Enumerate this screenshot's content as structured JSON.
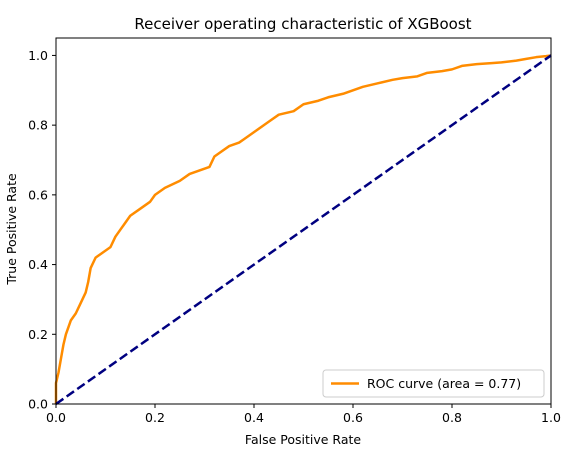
{
  "chart_data": {
    "type": "line",
    "title": "Receiver operating characteristic of XGBoost",
    "xlabel": "False Positive Rate",
    "ylabel": "True Positive Rate",
    "xlim": [
      0.0,
      1.0
    ],
    "ylim": [
      0.0,
      1.05
    ],
    "x_ticks": [
      "0.0",
      "0.2",
      "0.4",
      "0.6",
      "0.8",
      "1.0"
    ],
    "y_ticks": [
      "0.0",
      "0.2",
      "0.4",
      "0.6",
      "0.8",
      "1.0"
    ],
    "x_tick_values": [
      0.0,
      0.2,
      0.4,
      0.6,
      0.8,
      1.0
    ],
    "y_tick_values": [
      0.0,
      0.2,
      0.4,
      0.6,
      0.8,
      1.0
    ],
    "grid": false,
    "legend_position": "lower-right",
    "series": [
      {
        "name": "ROC curve (area = 0.77)",
        "color": "#ff8c00",
        "style": "solid",
        "x": [
          0.0,
          0.0,
          0.005,
          0.01,
          0.015,
          0.02,
          0.025,
          0.03,
          0.04,
          0.05,
          0.06,
          0.065,
          0.07,
          0.08,
          0.09,
          0.1,
          0.11,
          0.12,
          0.13,
          0.14,
          0.15,
          0.17,
          0.19,
          0.2,
          0.22,
          0.25,
          0.27,
          0.29,
          0.31,
          0.32,
          0.33,
          0.35,
          0.37,
          0.38,
          0.39,
          0.4,
          0.42,
          0.43,
          0.45,
          0.48,
          0.5,
          0.53,
          0.55,
          0.58,
          0.6,
          0.62,
          0.65,
          0.68,
          0.7,
          0.73,
          0.75,
          0.78,
          0.8,
          0.82,
          0.85,
          0.88,
          0.9,
          0.93,
          0.95,
          0.97,
          0.99,
          1.0
        ],
        "y": [
          0.0,
          0.06,
          0.09,
          0.13,
          0.17,
          0.2,
          0.22,
          0.24,
          0.26,
          0.29,
          0.32,
          0.35,
          0.39,
          0.42,
          0.43,
          0.44,
          0.45,
          0.48,
          0.5,
          0.52,
          0.54,
          0.56,
          0.58,
          0.6,
          0.62,
          0.64,
          0.66,
          0.67,
          0.68,
          0.71,
          0.72,
          0.74,
          0.75,
          0.76,
          0.77,
          0.78,
          0.8,
          0.81,
          0.83,
          0.84,
          0.86,
          0.87,
          0.88,
          0.89,
          0.9,
          0.91,
          0.92,
          0.93,
          0.935,
          0.94,
          0.95,
          0.955,
          0.96,
          0.97,
          0.975,
          0.978,
          0.98,
          0.985,
          0.99,
          0.995,
          0.998,
          1.0
        ]
      },
      {
        "color": "#000080",
        "style": "dashed",
        "x": [
          0.0,
          1.0
        ],
        "y": [
          0.0,
          1.0
        ]
      }
    ]
  }
}
